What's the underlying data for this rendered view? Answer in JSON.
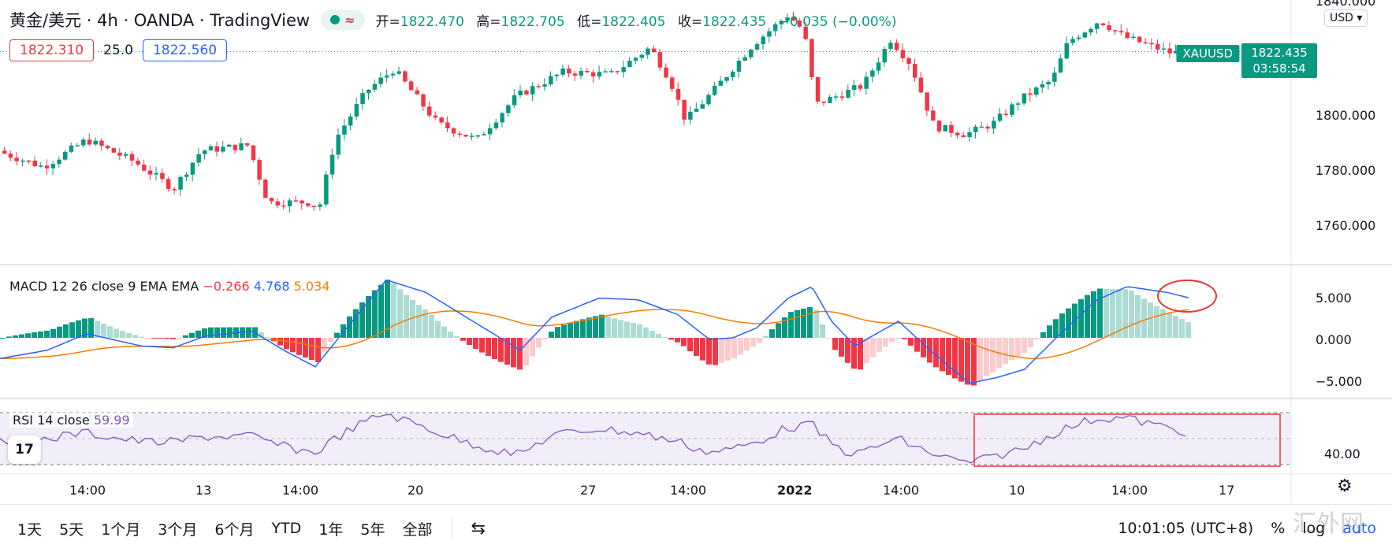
{
  "header": {
    "symbol": "黄金/美元 · 4h · OANDA · TradingView",
    "approx_icon": "≈",
    "ohlc": [
      {
        "k": "开=",
        "v": "1822.470"
      },
      {
        "k": "高=",
        "v": "1822.705"
      },
      {
        "k": "低=",
        "v": "1822.405"
      },
      {
        "k": "收=",
        "v": "1822.435"
      },
      {
        "k": "",
        "v": "−0.035 (−0.00%)"
      }
    ]
  },
  "trade": {
    "sell": "1822.310",
    "spread": "25.0",
    "buy": "1822.560"
  },
  "currency": "USD ▾",
  "price_tag": {
    "symbol": "XAUUSD",
    "price": "1822.435",
    "countdown": "03:58:54"
  },
  "macd_label": {
    "name": "MACD 12 26 close 9 EMA EMA",
    "hist": "−0.266",
    "macd": "4.768",
    "signal": "5.034"
  },
  "rsi_label": {
    "name": "RSI 14 close",
    "value": "59.99"
  },
  "logo_text": "17",
  "chart_data": {
    "type": "candlestick",
    "price_ticks": [
      "1840.000",
      "1800.000",
      "1780.000",
      "1760.000"
    ],
    "price_tick_values": [
      1840,
      1800,
      1780,
      1760
    ],
    "macd_ticks": [
      "5.000",
      "0.000",
      "−5.000"
    ],
    "macd_tick_values": [
      5,
      0,
      -5
    ],
    "rsi_ticks": [
      "40.00"
    ],
    "x_ticks": [
      "14:00",
      "13",
      "14:00",
      "20",
      "27",
      "14:00",
      "2022",
      "14:00",
      "10",
      "14:00",
      "17"
    ],
    "last_price": 1822.435
  },
  "ranges": [
    "1天",
    "5天",
    "1个月",
    "3个月",
    "6个月",
    "YTD",
    "1年",
    "5年",
    "全部"
  ],
  "clock": "10:01:05 (UTC+8)",
  "tools": {
    "percent": "%",
    "log": "log",
    "auto": "auto"
  },
  "watermark": "汇外网",
  "colors": {
    "up": "#089981",
    "down": "#f23645",
    "macd": "#2962ff",
    "signal": "#f57c00",
    "rsi": "#7e57c2"
  }
}
